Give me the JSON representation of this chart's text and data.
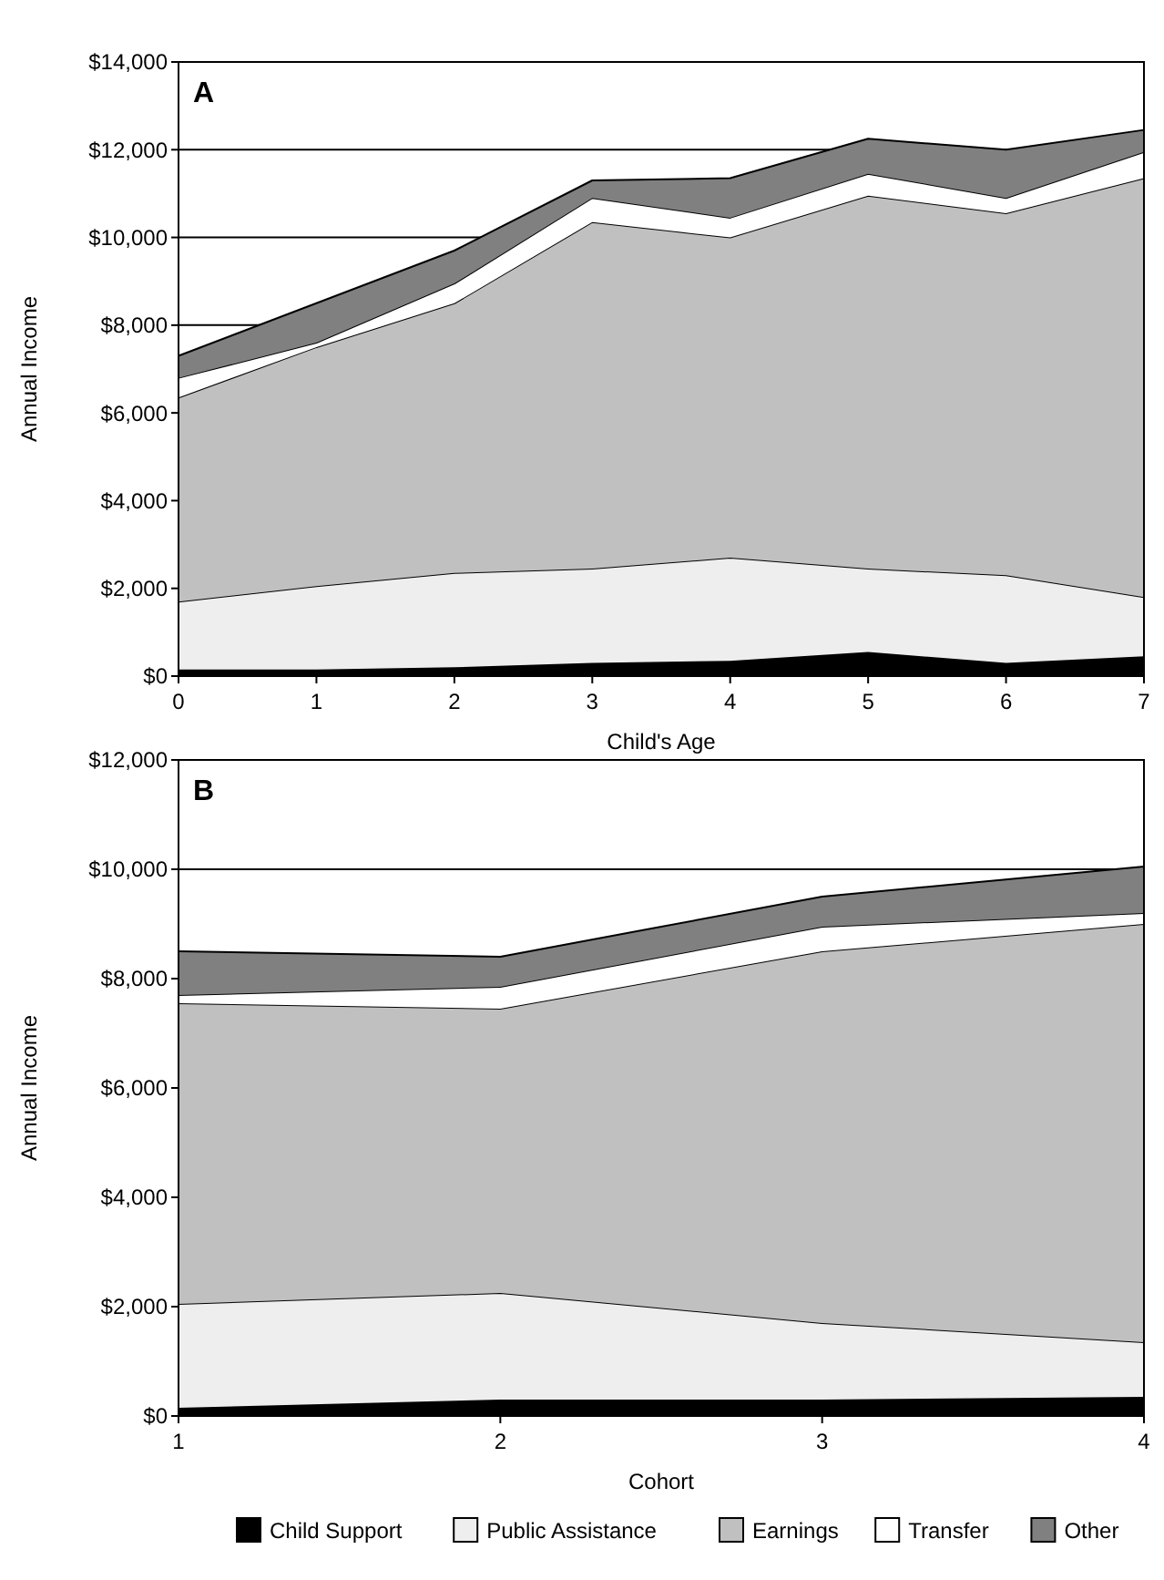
{
  "chart_data": [
    {
      "type": "area",
      "title": "A",
      "xlabel": "Child's Age",
      "ylabel": "Annual Income",
      "stacked": true,
      "x": [
        0,
        1,
        2,
        3,
        4,
        5,
        6,
        7
      ],
      "xlim": [
        0,
        7
      ],
      "xticks": [
        0,
        1,
        2,
        3,
        4,
        5,
        6,
        7
      ],
      "ylim": [
        0,
        14000
      ],
      "yticks": [
        {
          "value": 0,
          "label": "$0"
        },
        {
          "value": 2000,
          "label": "$2,000"
        },
        {
          "value": 4000,
          "label": "$4,000"
        },
        {
          "value": 6000,
          "label": "$6,000"
        },
        {
          "value": 8000,
          "label": "$8,000"
        },
        {
          "value": 10000,
          "label": "$10,000"
        },
        {
          "value": 12000,
          "label": "$12,000"
        },
        {
          "value": 14000,
          "label": "$14,000"
        }
      ],
      "grid": "y",
      "legend": false,
      "series": [
        {
          "color": "#000000",
          "values": [
            150,
            150,
            200,
            300,
            350,
            550,
            300,
            450
          ]
        },
        {
          "color": "#eeeeee",
          "values": [
            1550,
            1900,
            2150,
            2150,
            2350,
            1900,
            2000,
            1350
          ]
        },
        {
          "color": "#c0c0c0",
          "values": [
            4650,
            5450,
            6150,
            7900,
            7300,
            8500,
            8250,
            9550
          ]
        },
        {
          "color": "#ffffff",
          "values": [
            450,
            100,
            450,
            550,
            450,
            500,
            350,
            600
          ]
        },
        {
          "color": "#808080",
          "values": [
            500,
            900,
            750,
            400,
            900,
            800,
            1100,
            500
          ]
        }
      ]
    },
    {
      "type": "area",
      "title": "B",
      "xlabel": "Cohort",
      "ylabel": "Annual Income",
      "stacked": true,
      "x": [
        1,
        2,
        3,
        4
      ],
      "xlim": [
        1,
        4
      ],
      "xticks": [
        1,
        2,
        3,
        4
      ],
      "ylim": [
        0,
        12000
      ],
      "yticks": [
        {
          "value": 0,
          "label": "$0"
        },
        {
          "value": 2000,
          "label": "$2,000"
        },
        {
          "value": 4000,
          "label": "$4,000"
        },
        {
          "value": 6000,
          "label": "$6,000"
        },
        {
          "value": 8000,
          "label": "$8,000"
        },
        {
          "value": 10000,
          "label": "$10,000"
        },
        {
          "value": 12000,
          "label": "$12,000"
        }
      ],
      "grid": "y",
      "legend": "bottom",
      "series": [
        {
          "name": "Child Support",
          "color": "#000000",
          "values": [
            150,
            300,
            300,
            350
          ]
        },
        {
          "name": "Public Assistance",
          "color": "#eeeeee",
          "values": [
            1900,
            1950,
            1400,
            1000
          ]
        },
        {
          "name": "Earnings",
          "color": "#c0c0c0",
          "values": [
            5500,
            5200,
            6800,
            7650
          ]
        },
        {
          "name": "Transfer",
          "color": "#ffffff",
          "values": [
            150,
            400,
            450,
            200
          ]
        },
        {
          "name": "Other",
          "color": "#808080",
          "values": [
            800,
            550,
            550,
            850
          ]
        }
      ]
    }
  ]
}
